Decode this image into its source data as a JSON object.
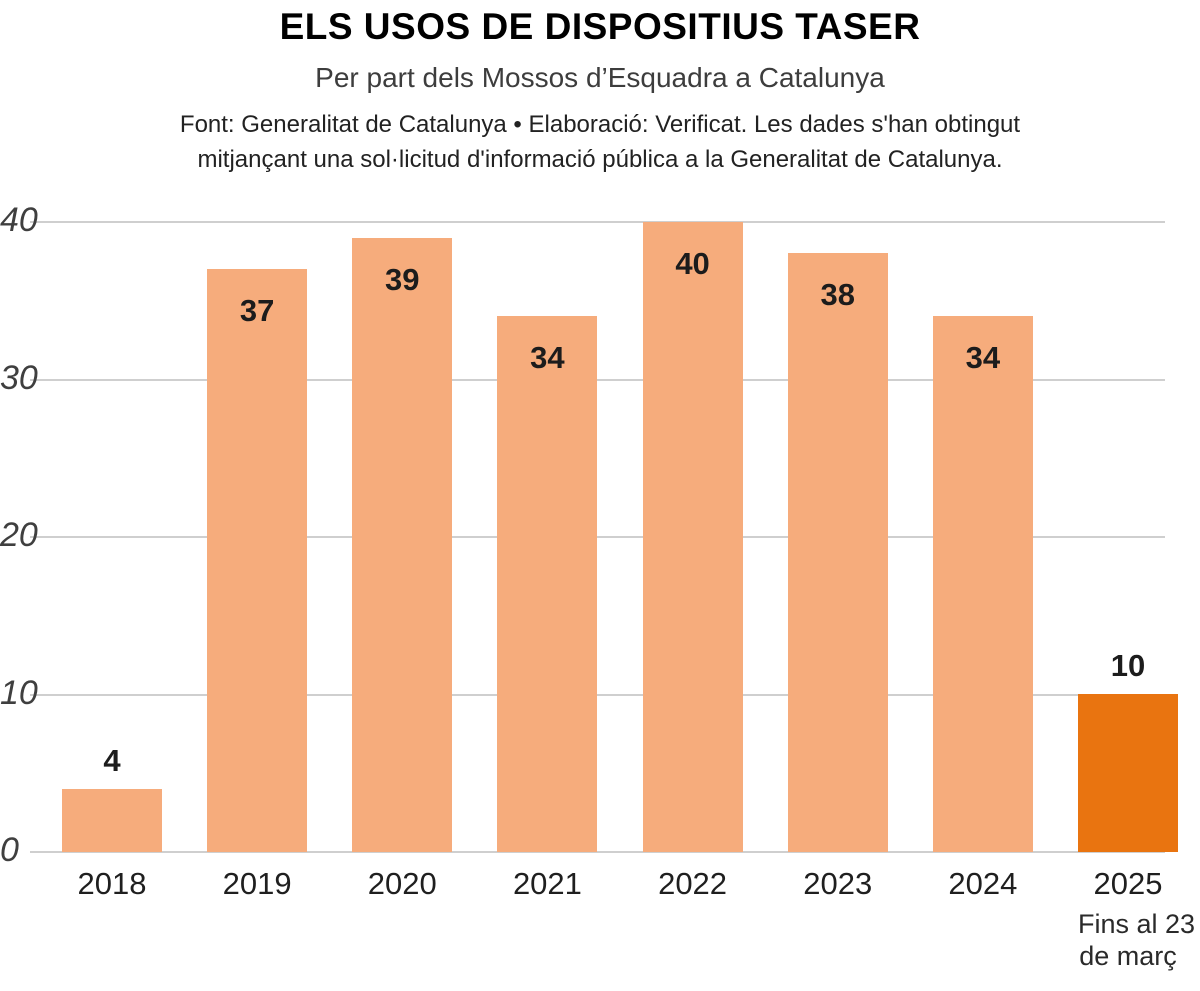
{
  "header": {
    "title": "ELS USOS DE DISPOSITIUS TASER",
    "subtitle": "Per part dels Mossos d’Esquadra a Catalunya",
    "source_line1": "Font: Generalitat de Catalunya • Elaboració: Verificat. Les dades s'han obtingut",
    "source_line2": "mitjançant una sol·licitud d'informació pública a la Generalitat de Catalunya."
  },
  "chart_data": {
    "type": "bar",
    "title": "ELS USOS DE DISPOSITIUS TASER",
    "subtitle": "Per part dels Mossos d’Esquadra a Catalunya",
    "categories": [
      "2018",
      "2019",
      "2020",
      "2021",
      "2022",
      "2023",
      "2024",
      "2025"
    ],
    "values": [
      4,
      37,
      39,
      34,
      40,
      38,
      34,
      10
    ],
    "highlight_index": 7,
    "note_for_last_category": [
      "Fins al 23",
      "de març"
    ],
    "yticks": [
      0,
      10,
      20,
      30,
      40
    ],
    "ylim": [
      0,
      40
    ],
    "grid": true,
    "legend": "none",
    "bar_color": "#f6ac7c",
    "highlight_color": "#e97410",
    "grid_color": "#cfcfcf"
  }
}
